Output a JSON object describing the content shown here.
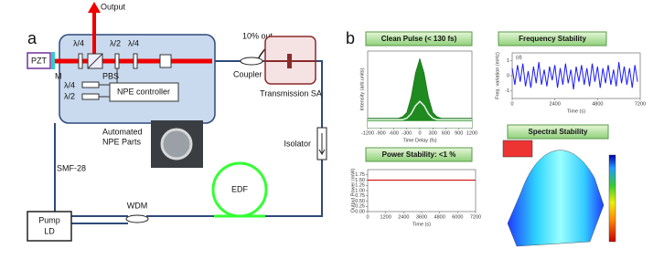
{
  "panel_a": {
    "label": "a",
    "pzt": "PZT",
    "mirror": "M",
    "output": "Output",
    "upper_plates": [
      "λ/4",
      "λ/2",
      "λ/4"
    ],
    "pbs": "PBS",
    "lower_plates": [
      "λ/4",
      "λ/2"
    ],
    "npe_controller": "NPE controller",
    "tap": "10% out",
    "coupler": "Coupler",
    "transmission_sa": "Transmission SA",
    "npe_parts": [
      "Automated",
      "NPE Parts"
    ],
    "isolator": "Isolator",
    "fiber": "SMF-28",
    "edf": "EDF",
    "wdm": "WDM",
    "pump": [
      "Pump",
      "LD"
    ]
  },
  "panel_b": {
    "label": "b",
    "charts": [
      {
        "type": "area",
        "title": "Clean Pulse (< 130 fs)",
        "x_label": "Time Delay (fs)",
        "y_label": "Intensity (arb.units)",
        "x": [
          -1200,
          -1100,
          -1000,
          -900,
          -800,
          -700,
          -600,
          -500,
          -400,
          -300,
          -200,
          -100,
          0,
          100,
          200,
          300,
          400,
          500,
          600,
          700,
          800,
          900,
          1000,
          1100,
          1200
        ],
        "series": [
          {
            "color": "#1f8a1f",
            "values": [
              1.3,
              1.3,
              1.3,
              1.3,
              1.3,
              1.3,
              1.3,
              1.3,
              1.5,
              2.1,
              4.2,
              7.5,
              9.5,
              7.5,
              4.2,
              2.1,
              1.5,
              1.3,
              1.3,
              1.3,
              1.3,
              1.3,
              1.3,
              1.3,
              1.3
            ]
          },
          {
            "color": "#ffffff",
            "values": [
              0.9,
              0.9,
              0.9,
              0.9,
              0.9,
              0.9,
              0.9,
              0.9,
              0.9,
              0.9,
              0.9,
              0.9,
              0.9,
              0.9,
              0.9,
              0.9,
              0.9,
              0.9,
              0.9,
              0.9,
              0.9,
              0.9,
              0.9,
              0.9,
              0.9
            ]
          },
          {
            "color": "#e8f5e8",
            "values": [
              1.1,
              1.1,
              1.1,
              1.1,
              1.1,
              1.1,
              1.1,
              1.1,
              1.1,
              1.3,
              1.9,
              3.0,
              3.6,
              3.0,
              1.9,
              1.3,
              1.1,
              1.1,
              1.1,
              1.1,
              1.1,
              1.1,
              1.1,
              1.1,
              1.1
            ]
          }
        ],
        "xlim": [
          -1200,
          1200
        ],
        "xticks": [
          -1200,
          -900,
          -600,
          -300,
          0,
          300,
          600,
          900,
          1200
        ],
        "ylim": [
          0,
          10.5
        ]
      },
      {
        "type": "line",
        "title": "Frequency Stability",
        "annotation": "(d)",
        "x_label": "Time (s)",
        "y_label": "Freq. variation (mHz)",
        "x": [
          0,
          150,
          300,
          450,
          600,
          750,
          900,
          1050,
          1200,
          1350,
          1500,
          1650,
          1800,
          1950,
          2100,
          2250,
          2400,
          2550,
          2700,
          2850,
          3000,
          3150,
          3300,
          3450,
          3600,
          3750,
          3900,
          4050,
          4200,
          4350,
          4500,
          4650,
          4800,
          4950,
          5100,
          5250,
          5400,
          5550,
          5700,
          5850,
          6000,
          6150,
          6300,
          6450,
          6600,
          6750,
          6900,
          7050
        ],
        "series": [
          {
            "color": "#1a1aff",
            "values": [
              0.5,
              -0.6,
              0.7,
              -0.4,
              0.8,
              -0.7,
              0.3,
              -0.8,
              0.6,
              -0.5,
              0.9,
              -0.6,
              0.4,
              -0.7,
              0.6,
              -0.3,
              0.7,
              -0.8,
              0.5,
              -0.6,
              0.8,
              -0.5,
              0.4,
              -0.9,
              0.6,
              -0.4,
              0.7,
              -0.6,
              0.5,
              -0.7,
              0.8,
              -0.4,
              0.6,
              -0.8,
              0.5,
              -0.5,
              0.7,
              -0.6,
              0.4,
              -0.7,
              0.9,
              -0.5,
              0.6,
              -0.6,
              0.5,
              -0.8,
              0.7,
              -0.4
            ]
          }
        ],
        "xlim": [
          0,
          7200
        ],
        "xticks": [
          0,
          2400,
          4800,
          7200
        ],
        "ylim": [
          -1.5,
          1.5
        ],
        "yticks": [
          -1,
          0,
          1
        ]
      },
      {
        "type": "line",
        "title": "Power Stability: <1 %",
        "x_label": "Time (s)",
        "y_label": "Output Power (mW)",
        "x": [
          0,
          7200
        ],
        "series": [
          {
            "color": "#d00000",
            "values": [
              1.5,
              1.5
            ]
          }
        ],
        "xlim": [
          0,
          7200
        ],
        "xticks": [
          0,
          1200,
          2400,
          3600,
          4800,
          6000,
          7200
        ],
        "ylim": [
          0,
          2
        ],
        "yticks": [
          {
            "value": 0,
            "label": "0.00"
          },
          {
            "value": 0.25,
            "label": "0.25"
          },
          {
            "value": 0.5,
            "label": "0.50"
          },
          {
            "value": 0.75,
            "label": "0.75"
          },
          {
            "value": 1,
            "label": "1.00"
          },
          {
            "value": 1.25,
            "label": "1.25"
          },
          {
            "value": 1.5,
            "label": "1.50"
          },
          {
            "value": 1.75,
            "label": "1.75"
          }
        ]
      },
      {
        "type": "surface",
        "title": "Spectral Stability"
      }
    ]
  }
}
